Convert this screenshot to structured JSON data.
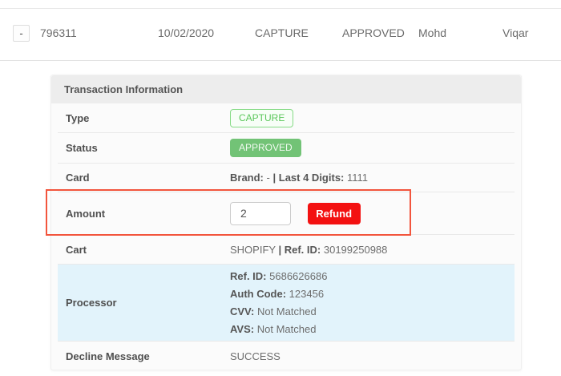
{
  "summary_row": {
    "toggle": "-",
    "transaction_id": "796311",
    "date": "10/02/2020",
    "type": "CAPTURE",
    "status": "APPROVED",
    "first_name": "Mohd",
    "last_name": "Viqar"
  },
  "panel": {
    "title": "Transaction Information",
    "rows": {
      "type": {
        "label": "Type",
        "badge": "CAPTURE"
      },
      "status": {
        "label": "Status",
        "badge": "APPROVED"
      },
      "card": {
        "label": "Card",
        "brand_label": "Brand:",
        "brand_value": "-",
        "separator": "|",
        "last4_label": "Last 4 Digits:",
        "last4_value": "1111"
      },
      "amount": {
        "label": "Amount",
        "input_value": "2",
        "refund_label": "Refund"
      },
      "cart": {
        "label": "Cart",
        "cart_value": "SHOPIFY",
        "separator": "|",
        "ref_label": "Ref. ID:",
        "ref_value": "30199250988"
      },
      "processor": {
        "label": "Processor",
        "lines": [
          {
            "label": "Ref. ID:",
            "value": "5686626686"
          },
          {
            "label": "Auth Code:",
            "value": "123456"
          },
          {
            "label": "CVV:",
            "value": "Not Matched"
          },
          {
            "label": "AVS:",
            "value": "Not Matched"
          }
        ]
      },
      "decline": {
        "label": "Decline Message",
        "value": "SUCCESS"
      }
    }
  },
  "colors": {
    "badge_green": "#72c376",
    "badge_outline_green": "#5bc75b",
    "refund_red": "#f31111",
    "annotation_red": "#f2553d",
    "processor_row_blue": "#e2f3fb",
    "panel_header_gray": "#ededed"
  }
}
